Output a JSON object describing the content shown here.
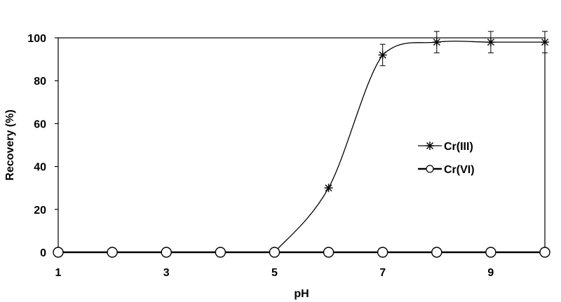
{
  "chart_data": {
    "type": "line",
    "title": "",
    "xlabel": "pH",
    "ylabel": "Recovery (%)",
    "xlim": [
      1,
      10
    ],
    "ylim": [
      0,
      100
    ],
    "x_ticks": [
      1,
      3,
      5,
      7,
      9
    ],
    "x_tick_labels": [
      "1",
      "3",
      "5",
      "7",
      "9"
    ],
    "y_ticks": [
      0,
      20,
      40,
      60,
      80,
      100
    ],
    "y_tick_labels": [
      "0",
      "20",
      "40",
      "60",
      "80",
      "100"
    ],
    "grid": false,
    "legend_position": "right",
    "series": [
      {
        "name": "Cr(III)",
        "marker": "star",
        "color": "#000000",
        "x": [
          1,
          2,
          3,
          4,
          5,
          6,
          7,
          8,
          9,
          10
        ],
        "y": [
          0,
          0,
          0,
          0,
          0,
          30,
          92,
          98,
          98,
          98
        ],
        "error": [
          0,
          0,
          0,
          0,
          0,
          0,
          5,
          5,
          5,
          5
        ]
      },
      {
        "name": "Cr(VI)",
        "marker": "circle",
        "color": "#000000",
        "x": [
          1,
          2,
          3,
          4,
          5,
          6,
          7,
          8,
          9,
          10
        ],
        "y": [
          0,
          0,
          0,
          0,
          0,
          0,
          0,
          0,
          0,
          0
        ],
        "error": [
          0,
          0,
          0,
          0,
          0,
          0,
          0,
          0,
          0,
          0
        ]
      }
    ]
  }
}
